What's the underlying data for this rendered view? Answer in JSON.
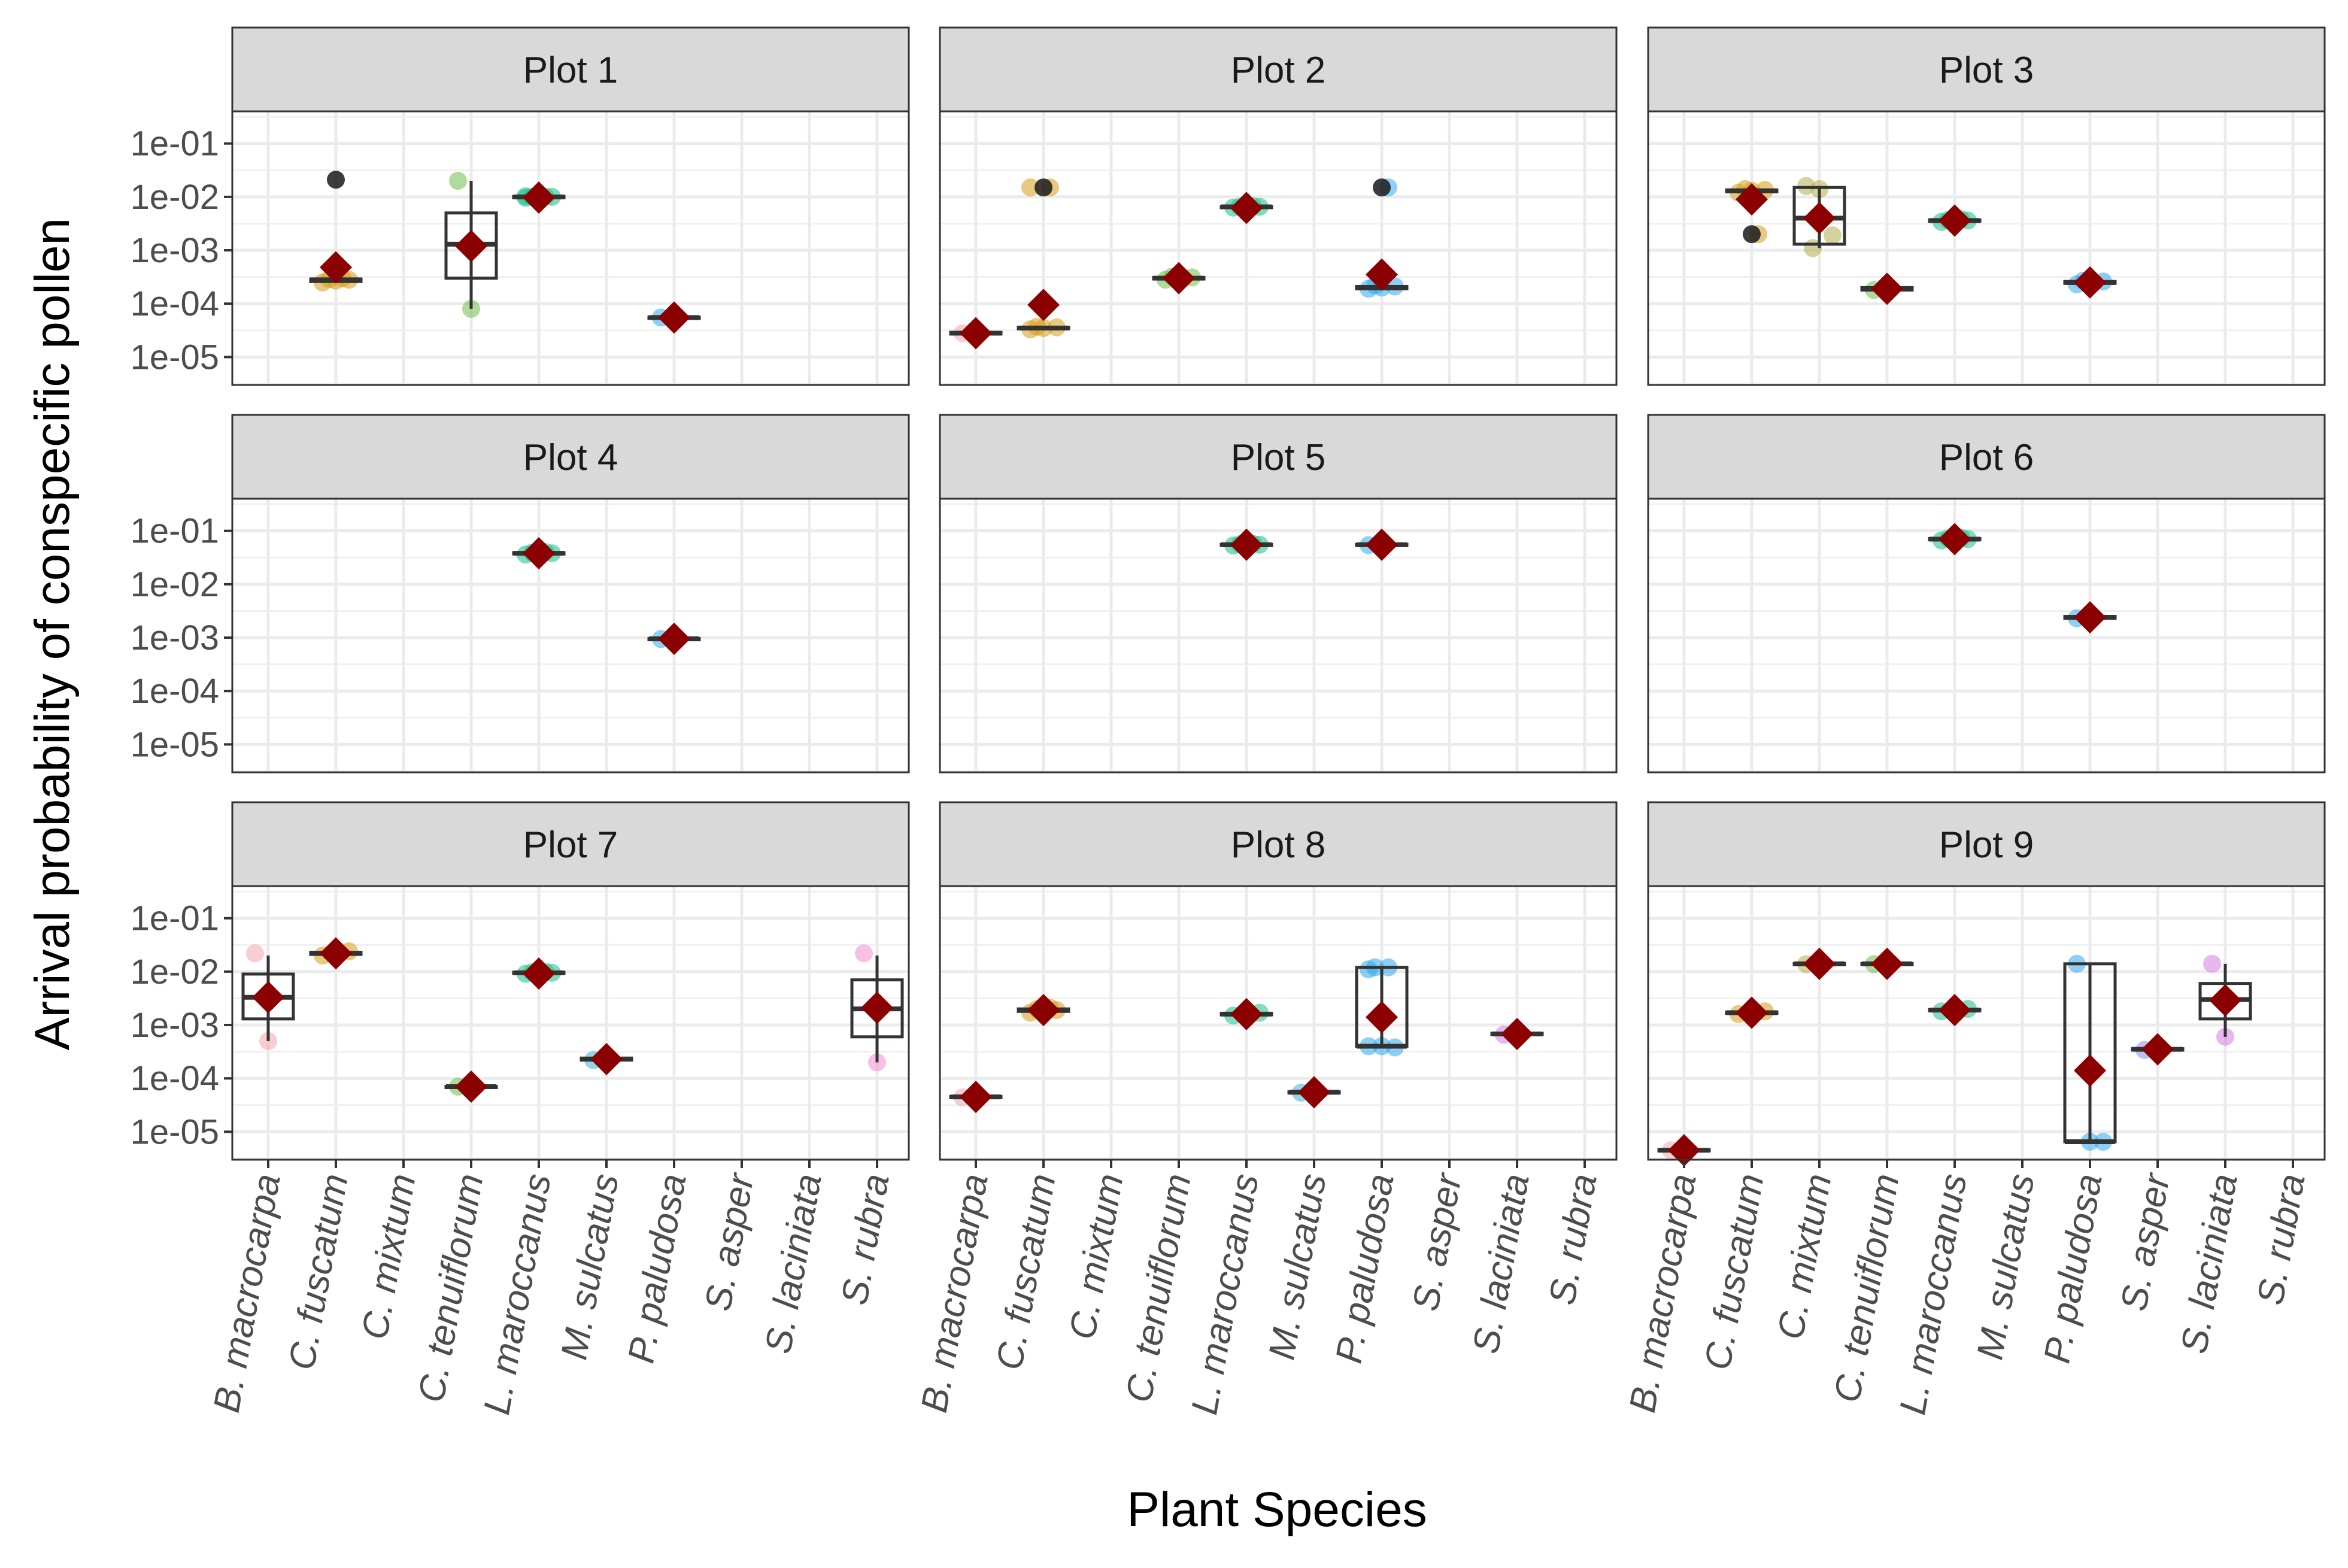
{
  "chart_data": {
    "type": "box-jitter",
    "xlabel": "Plant Species",
    "ylabel": "Arrival probability of conspecific pollen",
    "y_scale": "log10",
    "ylim": [
      3e-06,
      0.4
    ],
    "y_ticks": [
      "1e-01",
      "1e-02",
      "1e-03",
      "1e-04",
      "1e-05"
    ],
    "y_tick_values": [
      0.1,
      0.01,
      0.001,
      0.0001,
      1e-05
    ],
    "grid": true,
    "legend": "none",
    "mean_marker_color": "#8b0000",
    "species": [
      {
        "name": "B. macrocarpa",
        "color": "#f4a6ac"
      },
      {
        "name": "C. fuscatum",
        "color": "#d69c16"
      },
      {
        "name": "C. mixtum",
        "color": "#b3ad4e"
      },
      {
        "name": "C. tenuiflorum",
        "color": "#6dbd4d"
      },
      {
        "name": "L. maroccanus",
        "color": "#19c08a"
      },
      {
        "name": "M. sulcatus",
        "color": "#38b7d6"
      },
      {
        "name": "P. paludosa",
        "color": "#2fa8ef"
      },
      {
        "name": "S. asper",
        "color": "#8d8de8"
      },
      {
        "name": "S. laciniata",
        "color": "#d67be2"
      },
      {
        "name": "S. rubra",
        "color": "#f28ccf"
      }
    ],
    "facets": [
      {
        "title": "Plot 1",
        "groups": [
          {
            "species": "C. fuscatum",
            "median": 0.00028,
            "q1": 0.00026,
            "q3": 0.00029,
            "lo": 0.00025,
            "hi": 0.0003,
            "mean": 0.00048,
            "points": [
              0.00025,
              0.00027,
              0.00028,
              0.00029,
              0.0003
            ],
            "outliers": [
              0.021
            ]
          },
          {
            "species": "C. tenuiflorum",
            "median": 0.0013,
            "q1": 0.0003,
            "q3": 0.005,
            "lo": 8e-05,
            "hi": 0.02,
            "mean": 0.0012,
            "points": [
              0.02,
              8e-05
            ],
            "outliers": []
          },
          {
            "species": "L. maroccanus",
            "median": 0.01,
            "q1": 0.0098,
            "q3": 0.0102,
            "lo": 0.0096,
            "hi": 0.0104,
            "mean": 0.0097,
            "points": [
              0.0096,
              0.0098,
              0.01,
              0.01,
              0.0101,
              0.0103,
              0.0104
            ],
            "outliers": []
          },
          {
            "species": "P. paludosa",
            "median": 5.5e-05,
            "q1": 5.4e-05,
            "q3": 5.6e-05,
            "lo": 5.3e-05,
            "hi": 5.7e-05,
            "mean": 5.5e-05,
            "points": [
              5.5e-05,
              5.6e-05
            ],
            "outliers": []
          }
        ]
      },
      {
        "title": "Plot 2",
        "groups": [
          {
            "species": "B. macrocarpa",
            "median": 2.8e-05,
            "q1": 2.7e-05,
            "q3": 2.9e-05,
            "lo": 2.6e-05,
            "hi": 3e-05,
            "mean": 2.8e-05,
            "points": [
              2.8e-05,
              2.9e-05
            ],
            "outliers": []
          },
          {
            "species": "C. fuscatum",
            "median": 3.5e-05,
            "q1": 3.4e-05,
            "q3": 3.6e-05,
            "lo": 3.3e-05,
            "hi": 3.7e-05,
            "mean": 9.5e-05,
            "points": [
              3.3e-05,
              3.5e-05,
              3.6e-05,
              3.7e-05,
              0.015,
              0.015
            ],
            "outliers": [
              0.015
            ]
          },
          {
            "species": "C. tenuiflorum",
            "median": 0.0003,
            "q1": 0.00029,
            "q3": 0.00031,
            "lo": 0.00028,
            "hi": 0.00032,
            "mean": 0.0003,
            "points": [
              0.00028,
              0.0003,
              0.00031,
              0.00032
            ],
            "outliers": []
          },
          {
            "species": "L. maroccanus",
            "median": 0.0065,
            "q1": 0.0064,
            "q3": 0.0066,
            "lo": 0.0063,
            "hi": 0.0067,
            "mean": 0.0062,
            "points": [
              0.0063,
              0.0064,
              0.0065,
              0.0066,
              0.0067
            ],
            "outliers": []
          },
          {
            "species": "P. paludosa",
            "median": 0.0002,
            "q1": 0.00019,
            "q3": 0.00021,
            "lo": 0.00018,
            "hi": 0.00022,
            "mean": 0.00035,
            "points": [
              0.00019,
              0.0002,
              0.00021,
              0.00022,
              0.015
            ],
            "outliers": [
              0.015
            ]
          }
        ]
      },
      {
        "title": "Plot 3",
        "groups": [
          {
            "species": "C. fuscatum",
            "median": 0.013,
            "q1": 0.0125,
            "q3": 0.0135,
            "lo": 0.012,
            "hi": 0.014,
            "mean": 0.009,
            "points": [
              0.012,
              0.013,
              0.0135,
              0.014,
              0.002
            ],
            "outliers": [
              0.002
            ]
          },
          {
            "species": "C. mixtum",
            "median": 0.004,
            "q1": 0.0013,
            "q3": 0.015,
            "lo": 0.0011,
            "hi": 0.016,
            "mean": 0.004,
            "points": [
              0.016,
              0.014,
              0.0019,
              0.0011
            ],
            "outliers": []
          },
          {
            "species": "C. tenuiflorum",
            "median": 0.00019,
            "q1": 0.00018,
            "q3": 0.0002,
            "lo": 0.00017,
            "hi": 0.00021,
            "mean": 0.00019,
            "points": [
              0.00018,
              0.0002
            ],
            "outliers": []
          },
          {
            "species": "L. maroccanus",
            "median": 0.0036,
            "q1": 0.0035,
            "q3": 0.0037,
            "lo": 0.0034,
            "hi": 0.0038,
            "mean": 0.0036,
            "points": [
              0.0034,
              0.0035,
              0.0036,
              0.0037,
              0.0038
            ],
            "outliers": []
          },
          {
            "species": "P. paludosa",
            "median": 0.00025,
            "q1": 0.00024,
            "q3": 0.00026,
            "lo": 0.00023,
            "hi": 0.00027,
            "mean": 0.00025,
            "points": [
              0.00023,
              0.00025,
              0.00026,
              0.00027
            ],
            "outliers": []
          }
        ]
      },
      {
        "title": "Plot 4",
        "groups": [
          {
            "species": "L. maroccanus",
            "median": 0.038,
            "q1": 0.037,
            "q3": 0.039,
            "lo": 0.036,
            "hi": 0.04,
            "mean": 0.038,
            "points": [
              0.036,
              0.037,
              0.038,
              0.039,
              0.04
            ],
            "outliers": []
          },
          {
            "species": "P. paludosa",
            "median": 0.00095,
            "q1": 0.00094,
            "q3": 0.00096,
            "lo": 0.00093,
            "hi": 0.00097,
            "mean": 0.00095,
            "points": [
              0.00094,
              0.00096
            ],
            "outliers": []
          }
        ]
      },
      {
        "title": "Plot 5",
        "groups": [
          {
            "species": "L. maroccanus",
            "median": 0.055,
            "q1": 0.054,
            "q3": 0.056,
            "lo": 0.053,
            "hi": 0.057,
            "mean": 0.055,
            "points": [
              0.053,
              0.054,
              0.055,
              0.056,
              0.057
            ],
            "outliers": []
          },
          {
            "species": "P. paludosa",
            "median": 0.055,
            "q1": 0.054,
            "q3": 0.056,
            "lo": 0.053,
            "hi": 0.057,
            "mean": 0.055,
            "points": [
              0.054,
              0.056
            ],
            "outliers": []
          }
        ]
      },
      {
        "title": "Plot 6",
        "groups": [
          {
            "species": "L. maroccanus",
            "median": 0.07,
            "q1": 0.068,
            "q3": 0.072,
            "lo": 0.066,
            "hi": 0.074,
            "mean": 0.07,
            "points": [
              0.066,
              0.068,
              0.07,
              0.072,
              0.074
            ],
            "outliers": []
          },
          {
            "species": "P. paludosa",
            "median": 0.0024,
            "q1": 0.0023,
            "q3": 0.0025,
            "lo": 0.0022,
            "hi": 0.0026,
            "mean": 0.0024,
            "points": [
              0.0023,
              0.0025
            ],
            "outliers": []
          }
        ]
      },
      {
        "title": "Plot 7",
        "groups": [
          {
            "species": "B. macrocarpa",
            "median": 0.0033,
            "q1": 0.0013,
            "q3": 0.009,
            "lo": 0.0005,
            "hi": 0.02,
            "mean": 0.0033,
            "points": [
              0.022,
              0.0005
            ],
            "outliers": []
          },
          {
            "species": "C. fuscatum",
            "median": 0.022,
            "q1": 0.021,
            "q3": 0.023,
            "lo": 0.02,
            "hi": 0.024,
            "mean": 0.022,
            "points": [
              0.02,
              0.022,
              0.024
            ],
            "outliers": []
          },
          {
            "species": "C. tenuiflorum",
            "median": 7e-05,
            "q1": 6.9e-05,
            "q3": 7.1e-05,
            "lo": 6.8e-05,
            "hi": 7.2e-05,
            "mean": 7e-05,
            "points": [
              7e-05
            ],
            "outliers": []
          },
          {
            "species": "L. maroccanus",
            "median": 0.0095,
            "q1": 0.0093,
            "q3": 0.0097,
            "lo": 0.0091,
            "hi": 0.0099,
            "mean": 0.0092,
            "points": [
              0.0091,
              0.0093,
              0.0095,
              0.0097,
              0.0099
            ],
            "outliers": []
          },
          {
            "species": "M. sulcatus",
            "median": 0.00023,
            "q1": 0.00022,
            "q3": 0.00024,
            "lo": 0.00021,
            "hi": 0.00025,
            "mean": 0.00023,
            "points": [
              0.00022,
              0.00024
            ],
            "outliers": []
          },
          {
            "species": "S. rubra",
            "median": 0.002,
            "q1": 0.0006,
            "q3": 0.007,
            "lo": 0.0002,
            "hi": 0.02,
            "mean": 0.0021,
            "points": [
              0.022,
              0.0002
            ],
            "outliers": []
          }
        ]
      },
      {
        "title": "Plot 8",
        "groups": [
          {
            "species": "B. macrocarpa",
            "median": 4.5e-05,
            "q1": 4.4e-05,
            "q3": 4.6e-05,
            "lo": 4.3e-05,
            "hi": 4.7e-05,
            "mean": 4.5e-05,
            "points": [
              4.4e-05,
              4.6e-05
            ],
            "outliers": []
          },
          {
            "species": "C. fuscatum",
            "median": 0.0019,
            "q1": 0.0018,
            "q3": 0.002,
            "lo": 0.0017,
            "hi": 0.0021,
            "mean": 0.0019,
            "points": [
              0.0017,
              0.0018,
              0.0019,
              0.002,
              0.0021
            ],
            "outliers": []
          },
          {
            "species": "L. maroccanus",
            "median": 0.0016,
            "q1": 0.00155,
            "q3": 0.00165,
            "lo": 0.0015,
            "hi": 0.0017,
            "mean": 0.0016,
            "points": [
              0.0015,
              0.0016,
              0.0017
            ],
            "outliers": []
          },
          {
            "species": "M. sulcatus",
            "median": 5.5e-05,
            "q1": 5.4e-05,
            "q3": 5.6e-05,
            "lo": 5.3e-05,
            "hi": 5.7e-05,
            "mean": 5.5e-05,
            "points": [
              5.4e-05,
              5.6e-05
            ],
            "outliers": []
          },
          {
            "species": "P. paludosa",
            "median": 0.0004,
            "q1": 0.0004,
            "q3": 0.012,
            "lo": 0.00038,
            "hi": 0.012,
            "mean": 0.0014,
            "points": [
              0.0004,
              0.0004,
              0.00038,
              0.012,
              0.012,
              0.011
            ],
            "outliers": []
          },
          {
            "species": "S. laciniata",
            "median": 0.00068,
            "q1": 0.00066,
            "q3": 0.0007,
            "lo": 0.00064,
            "hi": 0.00072,
            "mean": 0.00068,
            "points": [
              0.00066,
              0.0007
            ],
            "outliers": []
          }
        ]
      },
      {
        "title": "Plot 9",
        "groups": [
          {
            "species": "B. macrocarpa",
            "median": 4.5e-06,
            "q1": 4.4e-06,
            "q3": 4.6e-06,
            "lo": 4.3e-06,
            "hi": 4.7e-06,
            "mean": 4.5e-06,
            "points": [
              4.5e-06
            ],
            "outliers": []
          },
          {
            "species": "C. fuscatum",
            "median": 0.0017,
            "q1": 0.00165,
            "q3": 0.00175,
            "lo": 0.0016,
            "hi": 0.0018,
            "mean": 0.0017,
            "points": [
              0.0016,
              0.0017,
              0.0018
            ],
            "outliers": []
          },
          {
            "species": "C. mixtum",
            "median": 0.014,
            "q1": 0.0138,
            "q3": 0.0142,
            "lo": 0.0136,
            "hi": 0.0144,
            "mean": 0.014,
            "points": [
              0.0138,
              0.0142
            ],
            "outliers": []
          },
          {
            "species": "C. tenuiflorum",
            "median": 0.014,
            "q1": 0.0138,
            "q3": 0.0142,
            "lo": 0.0136,
            "hi": 0.0144,
            "mean": 0.014,
            "points": [
              0.0138,
              0.0142
            ],
            "outliers": []
          },
          {
            "species": "L. maroccanus",
            "median": 0.0019,
            "q1": 0.00185,
            "q3": 0.00195,
            "lo": 0.0018,
            "hi": 0.002,
            "mean": 0.0019,
            "points": [
              0.0018,
              0.0019,
              0.002
            ],
            "outliers": []
          },
          {
            "species": "P. paludosa",
            "median": 6.5e-06,
            "q1": 6.5e-06,
            "q3": 0.014,
            "lo": 6.5e-06,
            "hi": 0.014,
            "mean": 0.00014,
            "points": [
              0.014,
              6.5e-06,
              6.5e-06
            ],
            "outliers": []
          },
          {
            "species": "S. asper",
            "median": 0.00035,
            "q1": 0.00034,
            "q3": 0.00036,
            "lo": 0.00033,
            "hi": 0.00037,
            "mean": 0.00035,
            "points": [
              0.00034,
              0.00036
            ],
            "outliers": []
          },
          {
            "species": "S. laciniata",
            "median": 0.003,
            "q1": 0.0013,
            "q3": 0.006,
            "lo": 0.0006,
            "hi": 0.014,
            "mean": 0.0029,
            "points": [
              0.014,
              0.0006
            ],
            "outliers": []
          }
        ]
      }
    ]
  }
}
